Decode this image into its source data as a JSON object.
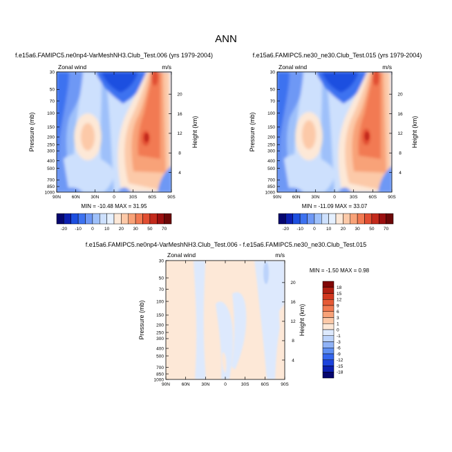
{
  "page": {
    "title": "ANN"
  },
  "colors": {
    "cool": [
      "#06066e",
      "#0c1fb0",
      "#1d4fe0",
      "#3d72f0",
      "#6e98f5",
      "#9ec0fa",
      "#cde0fd",
      "#e5f0ff"
    ],
    "warm": [
      "#fde8d7",
      "#fcc9a8",
      "#f8a278",
      "#f27a52",
      "#e14e32",
      "#c32a1c",
      "#9b1010",
      "#6c0808"
    ],
    "diff_cool": [
      "#dde9fd",
      "#bcd3fb",
      "#8fb2f6",
      "#5f8ff2",
      "#3466ee",
      "#1d43dc",
      "#0c1fb0",
      "#06066e"
    ],
    "diff_warm": [
      "#fde8d7",
      "#fcc9a8",
      "#f8a278",
      "#f27a52",
      "#e65a36",
      "#d2381f",
      "#b01f12",
      "#800606"
    ]
  },
  "chart_data": [
    {
      "type": "heatmap",
      "title": "f.e15a6.FAMIPC5.ne0np4-VarMeshNH3.Club_Test.006 (yrs 1979-2004)",
      "left_label": "Zonal wind",
      "right_label": "m/s",
      "ylabel": "Pressure (mb)",
      "ylabel_right": "Height (km)",
      "x_ticks": [
        "90N",
        "60N",
        "30N",
        "0",
        "30S",
        "60S",
        "90S"
      ],
      "y_ticks": [
        "30",
        "50",
        "70",
        "100",
        "150",
        "200",
        "250",
        "300",
        "400",
        "500",
        "700",
        "850",
        "1000"
      ],
      "y_ticks_right": [
        "20",
        "16",
        "12",
        "8",
        "4"
      ],
      "stats": "MIN = -10.48   MAX = 31.95",
      "min": -10.48,
      "max": 31.95,
      "colorbar_labels": [
        "-20",
        "-10",
        "0",
        "10",
        "20",
        "30",
        "50",
        "70"
      ]
    },
    {
      "type": "heatmap",
      "title": "f.e15a6.FAMIPC5.ne30_ne30.Club_Test.015 (yrs 1979-2004)",
      "left_label": "Zonal wind",
      "right_label": "m/s",
      "ylabel": "Pressure (mb)",
      "ylabel_right": "Height (km)",
      "x_ticks": [
        "90N",
        "60N",
        "30N",
        "0",
        "30S",
        "60S",
        "90S"
      ],
      "y_ticks": [
        "30",
        "50",
        "70",
        "100",
        "150",
        "200",
        "250",
        "300",
        "400",
        "500",
        "700",
        "850",
        "1000"
      ],
      "y_ticks_right": [
        "20",
        "16",
        "12",
        "8",
        "4"
      ],
      "stats": "MIN = -11.09   MAX = 33.07",
      "min": -11.09,
      "max": 33.07,
      "colorbar_labels": [
        "-20",
        "-10",
        "0",
        "10",
        "20",
        "30",
        "50",
        "70"
      ]
    },
    {
      "type": "heatmap",
      "title": "f.e15a6.FAMIPC5.ne0np4-VarMeshNH3.Club_Test.006 - f.e15a6.FAMIPC5.ne30_ne30.Club_Test.015",
      "left_label": "Zonal wind",
      "right_label": "m/s",
      "ylabel": "Pressure (mb)",
      "ylabel_right": "Height (km)",
      "x_ticks": [
        "90N",
        "60N",
        "30N",
        "0",
        "30S",
        "60S",
        "90S"
      ],
      "y_ticks": [
        "30",
        "50",
        "70",
        "100",
        "150",
        "200",
        "250",
        "300",
        "400",
        "500",
        "700",
        "850",
        "1000"
      ],
      "y_ticks_right": [
        "20",
        "16",
        "12",
        "8",
        "4"
      ],
      "stats": "MIN =  -1.50   MAX =   0.98",
      "min": -1.5,
      "max": 0.98,
      "colorbar_labels": [
        "18",
        "15",
        "12",
        "9",
        "6",
        "3",
        "1",
        "0",
        "-1",
        "-3",
        "-6",
        "-9",
        "-12",
        "-15",
        "-18"
      ]
    }
  ]
}
